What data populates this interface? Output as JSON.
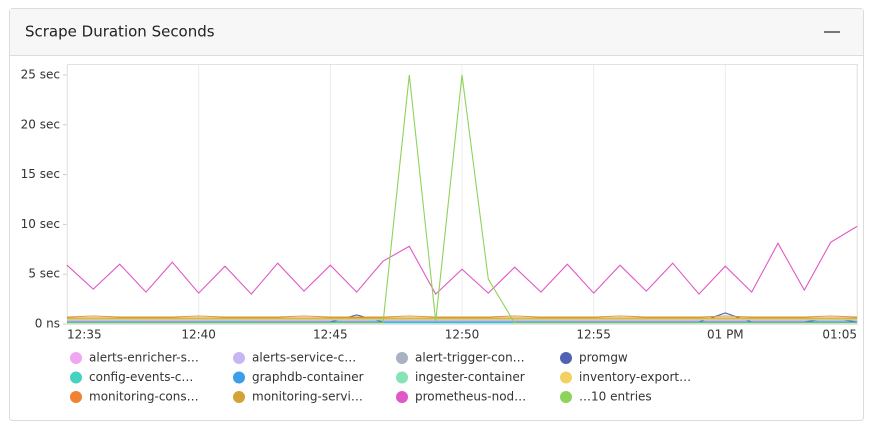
{
  "chart_data": {
    "type": "line",
    "title": "Scrape Duration Seconds",
    "x": [
      0,
      1,
      2,
      3,
      4,
      5,
      6,
      7,
      8,
      9,
      10,
      11,
      12,
      13,
      14,
      15,
      16,
      17,
      18,
      19,
      20,
      21,
      22,
      23,
      24,
      25,
      26,
      27,
      28,
      29,
      30
    ],
    "xlim": [
      0,
      30
    ],
    "xticks": [
      {
        "value": 0,
        "label": "12:35"
      },
      {
        "value": 5,
        "label": "12:40"
      },
      {
        "value": 10,
        "label": "12:45"
      },
      {
        "value": 15,
        "label": "12:50"
      },
      {
        "value": 20,
        "label": "12:55"
      },
      {
        "value": 25,
        "label": "01 PM"
      },
      {
        "value": 30,
        "label": "01:05"
      }
    ],
    "ylim": [
      0,
      26
    ],
    "yticks": [
      {
        "value": 0,
        "label": "0 ns"
      },
      {
        "value": 5,
        "label": "5 sec"
      },
      {
        "value": 10,
        "label": "10 sec"
      },
      {
        "value": 15,
        "label": "15 sec"
      },
      {
        "value": 20,
        "label": "20 sec"
      },
      {
        "value": 25,
        "label": "25 sec"
      }
    ],
    "grid": true,
    "series": [
      {
        "name": "alerts-enricher-s…",
        "color": "#f0a6f0",
        "values": [
          0.3,
          0.3,
          0.3,
          0.3,
          0.3,
          0.3,
          0.3,
          0.3,
          0.3,
          0.3,
          0.3,
          0.3,
          0.3,
          0.3,
          0.3,
          0.3,
          0.3,
          0.3,
          0.3,
          0.3,
          0.3,
          0.3,
          0.3,
          0.3,
          0.3,
          0.3,
          0.3,
          0.3,
          0.3,
          0.3,
          0.3
        ]
      },
      {
        "name": "alerts-service-c…",
        "color": "#c8b6f2",
        "values": [
          0.2,
          0.2,
          0.3,
          0.2,
          0.2,
          0.2,
          0.3,
          0.2,
          0.2,
          0.2,
          0.2,
          0.5,
          0.2,
          0.2,
          0.2,
          0.2,
          0.2,
          0.2,
          0.3,
          0.2,
          0.2,
          0.2,
          0.2,
          0.2,
          0.2,
          0.2,
          0.2,
          0.2,
          0.2,
          0.3,
          0.2
        ]
      },
      {
        "name": "alert-trigger-con…",
        "color": "#a9b1c2",
        "values": [
          0.1,
          0.1,
          0.1,
          0.1,
          0.1,
          0.1,
          0.1,
          0.1,
          0.1,
          0.1,
          0.1,
          0.1,
          0.1,
          0.1,
          0.1,
          0.1,
          0.1,
          0.1,
          0.1,
          0.1,
          0.1,
          0.1,
          0.1,
          0.1,
          0.1,
          0.1,
          0.1,
          0.1,
          0.1,
          0.1,
          0.1
        ]
      },
      {
        "name": "promgw",
        "color": "#5062b2",
        "values": [
          0.2,
          0.2,
          0.2,
          0.2,
          0.2,
          0.2,
          0.2,
          0.2,
          0.2,
          0.2,
          0.2,
          0.9,
          0.2,
          0.2,
          0.2,
          0.2,
          0.2,
          0.2,
          0.2,
          0.2,
          0.2,
          0.2,
          0.2,
          0.2,
          0.2,
          1.1,
          0.2,
          0.2,
          0.2,
          0.6,
          0.2
        ]
      },
      {
        "name": "config-events-c…",
        "color": "#44d3c2",
        "values": [
          0.1,
          0.1,
          0.1,
          0.1,
          0.1,
          0.1,
          0.1,
          0.1,
          0.1,
          0.1,
          0.1,
          0.1,
          0.1,
          0.1,
          0.1,
          0.1,
          0.1,
          0.1,
          0.1,
          0.1,
          0.1,
          0.1,
          0.1,
          0.1,
          0.1,
          0.1,
          0.1,
          0.1,
          0.1,
          0.1,
          0.1
        ]
      },
      {
        "name": "graphdb-container",
        "color": "#3a9ee8",
        "values": [
          0.2,
          0.2,
          0.2,
          0.2,
          0.2,
          0.2,
          0.2,
          0.2,
          0.2,
          0.2,
          0.2,
          0.2,
          0.2,
          0.2,
          0.2,
          0.2,
          0.2,
          0.2,
          0.2,
          0.2,
          0.2,
          0.2,
          0.2,
          0.2,
          0.2,
          0.2,
          0.2,
          0.2,
          0.2,
          0.2,
          0.2
        ]
      },
      {
        "name": "ingester-container",
        "color": "#86e3b5",
        "values": [
          0.4,
          0.4,
          0.4,
          0.4,
          0.4,
          0.4,
          0.4,
          0.4,
          0.4,
          0.4,
          0.4,
          0.4,
          0.4,
          0.4,
          0.4,
          0.4,
          0.4,
          0.4,
          0.4,
          0.4,
          0.4,
          0.4,
          0.4,
          0.4,
          0.4,
          0.4,
          0.4,
          0.4,
          0.4,
          0.4,
          0.4
        ]
      },
      {
        "name": "inventory-export…",
        "color": "#f2d062",
        "values": [
          0.5,
          0.5,
          0.5,
          0.5,
          0.5,
          0.5,
          0.5,
          0.5,
          0.5,
          0.5,
          0.5,
          0.5,
          0.5,
          0.5,
          0.5,
          0.5,
          0.5,
          0.5,
          0.5,
          0.5,
          0.5,
          0.5,
          0.5,
          0.5,
          0.5,
          0.5,
          0.5,
          0.5,
          0.5,
          0.5,
          0.5
        ]
      },
      {
        "name": "monitoring-cons…",
        "color": "#f08232",
        "values": [
          0.6,
          0.6,
          0.6,
          0.6,
          0.6,
          0.6,
          0.6,
          0.6,
          0.6,
          0.6,
          0.6,
          0.6,
          0.6,
          0.6,
          0.6,
          0.6,
          0.6,
          0.6,
          0.6,
          0.6,
          0.6,
          0.6,
          0.6,
          0.6,
          0.6,
          0.6,
          0.6,
          0.6,
          0.6,
          0.6,
          0.6
        ]
      },
      {
        "name": "monitoring-servi…",
        "color": "#d4a235",
        "values": [
          0.7,
          0.8,
          0.7,
          0.7,
          0.7,
          0.8,
          0.7,
          0.7,
          0.7,
          0.8,
          0.7,
          0.7,
          0.7,
          0.8,
          0.7,
          0.7,
          0.7,
          0.8,
          0.7,
          0.7,
          0.7,
          0.8,
          0.7,
          0.7,
          0.7,
          0.8,
          0.7,
          0.7,
          0.7,
          0.8,
          0.7
        ]
      },
      {
        "name": "prometheus-nod…",
        "color": "#e058c6",
        "values": [
          5.9,
          3.5,
          6.0,
          3.2,
          6.2,
          3.1,
          5.8,
          3.0,
          6.1,
          3.3,
          5.9,
          3.2,
          6.3,
          7.8,
          3.0,
          5.5,
          3.1,
          5.7,
          3.2,
          6.0,
          3.1,
          5.9,
          3.3,
          6.1,
          3.0,
          5.8,
          3.2,
          8.1,
          3.4,
          8.2,
          9.8
        ]
      },
      {
        "name": "…10 entries",
        "color": "#8ed25a",
        "values": [
          0.1,
          0.1,
          0.1,
          0.1,
          0.1,
          0.1,
          0.1,
          0.1,
          0.1,
          0.1,
          0.1,
          0.1,
          0.1,
          25,
          0.3,
          25,
          4.5,
          0.1,
          0.1,
          0.1,
          0.1,
          0.1,
          0.1,
          0.1,
          0.1,
          0.1,
          0.1,
          0.1,
          0.1,
          0.1,
          0.1
        ]
      }
    ]
  }
}
